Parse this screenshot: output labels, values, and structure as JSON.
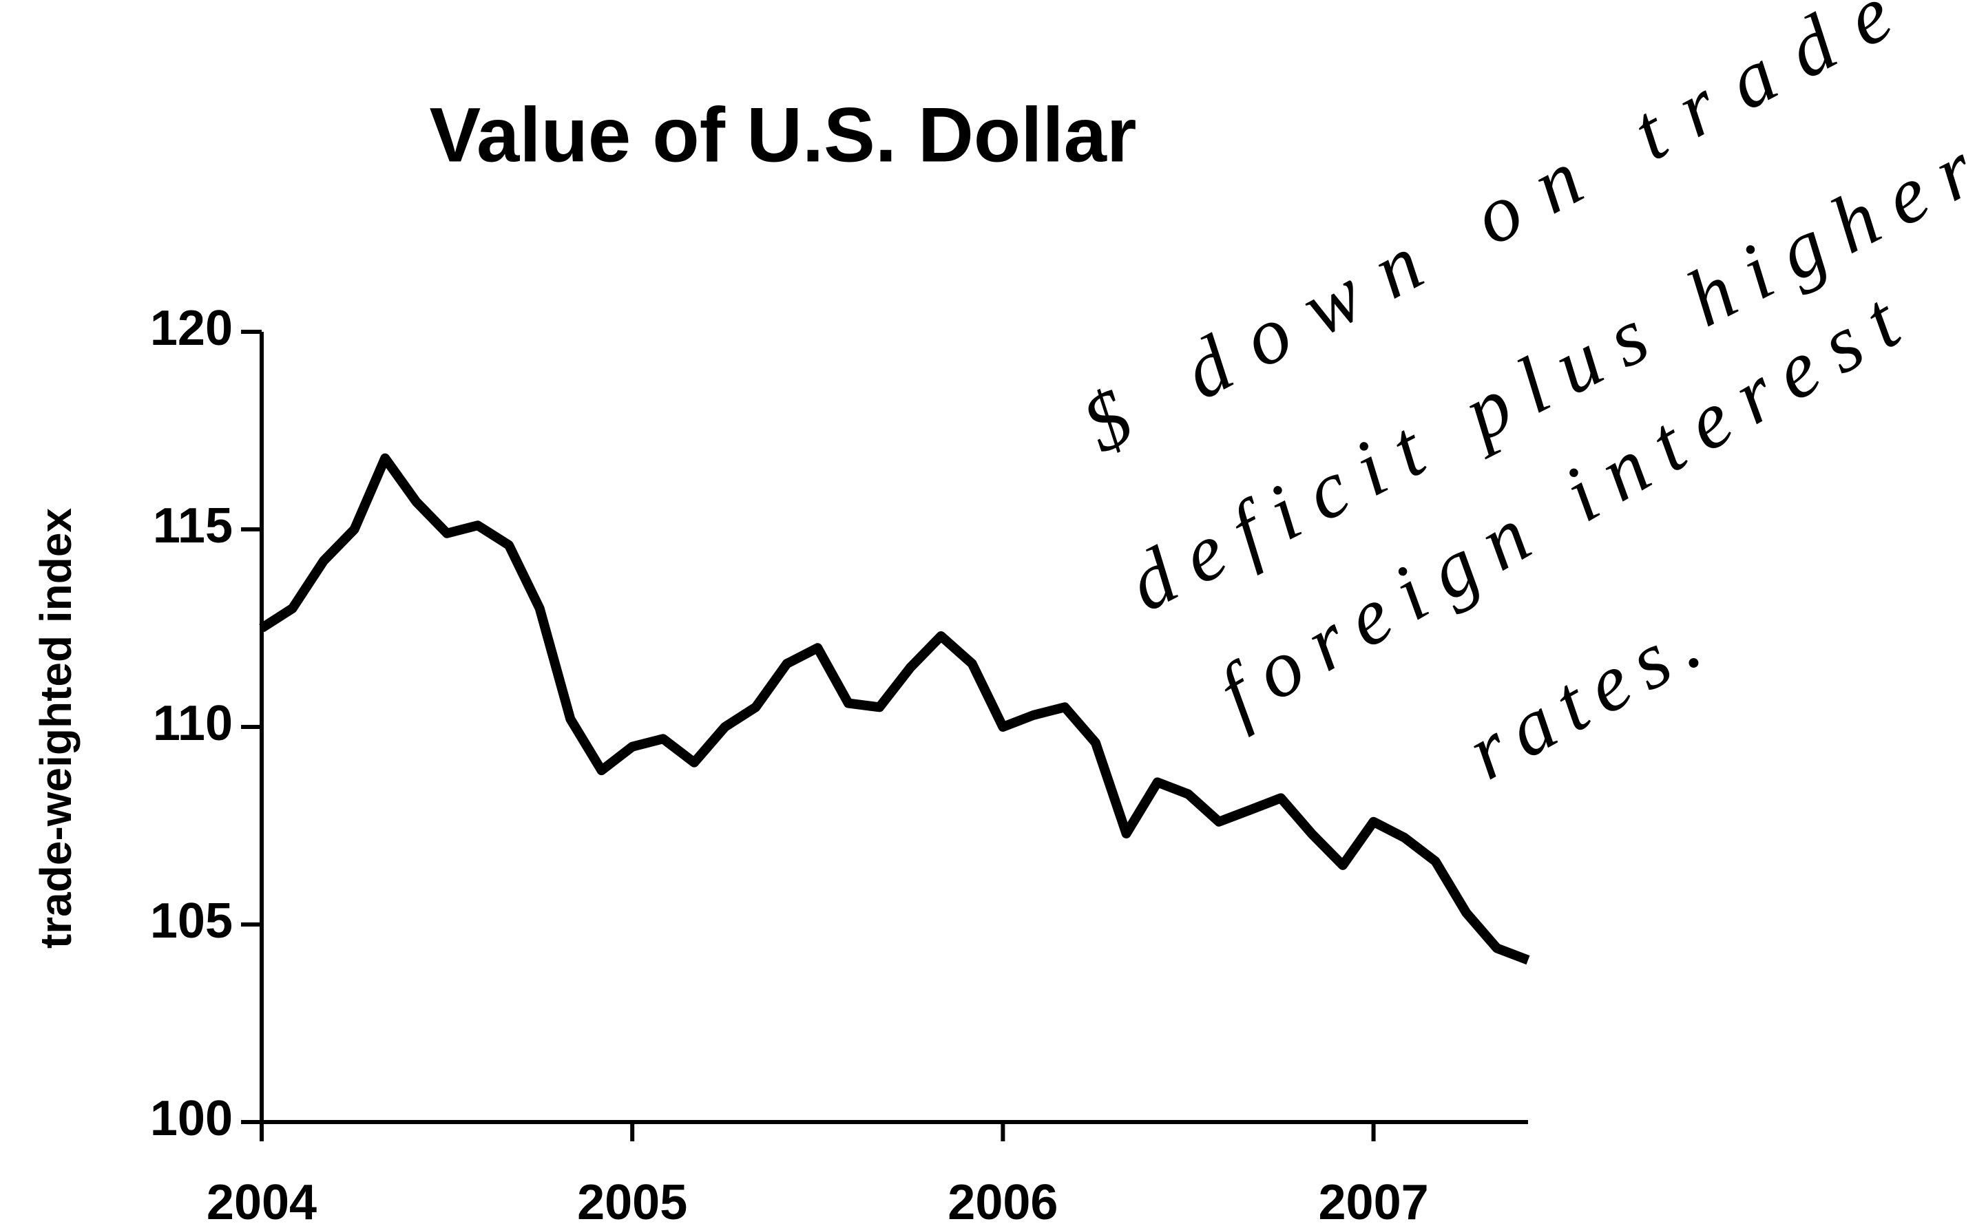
{
  "chart_data": {
    "type": "line",
    "title": "Value of U.S. Dollar",
    "y_label": "trade-weighted index",
    "annotation_lines": [
      "$ down on trade",
      "deficit plus higher",
      "foreign interest",
      "rates."
    ],
    "x": [
      2004.0,
      2004.083,
      2004.167,
      2004.25,
      2004.333,
      2004.417,
      2004.5,
      2004.583,
      2004.667,
      2004.75,
      2004.833,
      2004.917,
      2005.0,
      2005.083,
      2005.167,
      2005.25,
      2005.333,
      2005.417,
      2005.5,
      2005.583,
      2005.667,
      2005.75,
      2005.833,
      2005.917,
      2006.0,
      2006.083,
      2006.167,
      2006.25,
      2006.333,
      2006.417,
      2006.5,
      2006.583,
      2006.667,
      2006.75,
      2006.833,
      2006.917,
      2007.0,
      2007.083,
      2007.167,
      2007.25,
      2007.333,
      2007.417
    ],
    "series": [
      {
        "name": "trade-weighted index",
        "color": "#000000",
        "values": [
          112.5,
          113.0,
          114.2,
          115.0,
          116.8,
          115.7,
          114.9,
          115.1,
          114.6,
          113.0,
          110.2,
          108.9,
          109.5,
          109.7,
          109.1,
          110.0,
          110.5,
          111.6,
          112.0,
          110.6,
          110.5,
          111.5,
          112.3,
          111.6,
          110.0,
          110.3,
          110.5,
          109.6,
          107.3,
          108.6,
          108.3,
          107.6,
          107.9,
          108.2,
          107.3,
          106.5,
          107.6,
          107.2,
          106.6,
          105.3,
          104.4,
          104.1
        ]
      }
    ],
    "xlim": [
      2004,
      2007.417
    ],
    "xticks": [
      2004,
      2005,
      2006,
      2007
    ],
    "ylim": [
      100,
      120
    ],
    "yticks": [
      100,
      105,
      110,
      115,
      120
    ],
    "grid": false
  }
}
